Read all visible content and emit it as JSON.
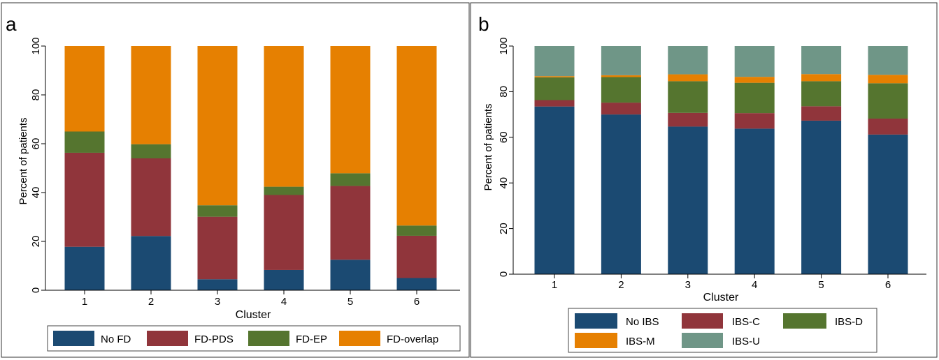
{
  "chart_data": [
    {
      "panel_label": "a",
      "type": "bar",
      "stacked": true,
      "categories": [
        "1",
        "2",
        "3",
        "4",
        "5",
        "6"
      ],
      "series": [
        {
          "name": "No FD",
          "color": "#1b4a72",
          "values": [
            17.8,
            22.2,
            4.5,
            8.3,
            12.5,
            5.0
          ]
        },
        {
          "name": "FD-PDS",
          "color": "#90353b",
          "values": [
            38.5,
            31.8,
            25.6,
            30.7,
            30.2,
            17.3
          ]
        },
        {
          "name": "FD-EP",
          "color": "#55752f",
          "values": [
            8.7,
            5.8,
            4.7,
            3.4,
            5.2,
            4.2
          ]
        },
        {
          "name": "FD-overlap",
          "color": "#e68001",
          "values": [
            35.0,
            40.2,
            65.2,
            57.6,
            52.1,
            73.5
          ]
        }
      ],
      "xlabel": "Cluster",
      "ylabel": "Percent of patients",
      "ylim": [
        0,
        100
      ],
      "yticks": [
        "0",
        "20",
        "40",
        "60",
        "80",
        "100"
      ],
      "grid": false,
      "legend_position": "bottom",
      "legend_items": [
        "No FD",
        "FD-PDS",
        "FD-EP",
        "FD-overlap"
      ]
    },
    {
      "panel_label": "b",
      "type": "bar",
      "stacked": true,
      "categories": [
        "1",
        "2",
        "3",
        "4",
        "5",
        "6"
      ],
      "series": [
        {
          "name": "No IBS",
          "color": "#1b4a72",
          "values": [
            73.5,
            70.0,
            64.7,
            63.8,
            67.3,
            61.2
          ]
        },
        {
          "name": "IBS-C",
          "color": "#90353b",
          "values": [
            2.8,
            5.2,
            6.0,
            6.8,
            6.3,
            7.0
          ]
        },
        {
          "name": "IBS-D",
          "color": "#55752f",
          "values": [
            10.0,
            11.2,
            13.9,
            13.3,
            11.0,
            15.5
          ]
        },
        {
          "name": "IBS-M",
          "color": "#e68001",
          "values": [
            0.5,
            0.8,
            3.0,
            2.6,
            3.1,
            3.7
          ]
        },
        {
          "name": "IBS-U",
          "color": "#6f9687",
          "values": [
            13.2,
            12.8,
            12.4,
            13.5,
            12.3,
            12.6
          ]
        }
      ],
      "xlabel": "Cluster",
      "ylabel": "Percent of patients",
      "ylim": [
        0,
        100
      ],
      "yticks": [
        "0",
        "20",
        "40",
        "60",
        "80",
        "100"
      ],
      "grid": false,
      "legend_position": "bottom",
      "legend_items": [
        "No IBS",
        "IBS-C",
        "IBS-D",
        "IBS-M",
        "IBS-U"
      ]
    }
  ]
}
